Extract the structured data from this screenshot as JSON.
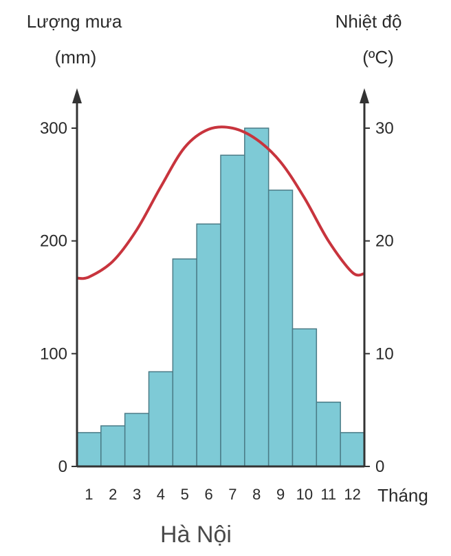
{
  "chart_data": {
    "type": "bar",
    "title": "Hà Nội",
    "left_axis": {
      "label": "Lượng mưa",
      "unit": "(mm)",
      "ticks": [
        0,
        100,
        200,
        300
      ],
      "range": [
        0,
        300
      ]
    },
    "right_axis": {
      "label": "Nhiệt độ",
      "unit": "(ºC)",
      "ticks": [
        0,
        10,
        20,
        30
      ],
      "range": [
        0,
        30
      ]
    },
    "xlabel": "Tháng",
    "categories": [
      "1",
      "2",
      "3",
      "4",
      "5",
      "6",
      "7",
      "8",
      "9",
      "10",
      "11",
      "12"
    ],
    "series": [
      {
        "type": "bar",
        "axis": "left",
        "values": [
          30,
          36,
          47,
          84,
          184,
          215,
          276,
          300,
          245,
          122,
          57,
          30
        ]
      },
      {
        "type": "line",
        "axis": "right",
        "values": [
          16.8,
          18.2,
          21.0,
          24.8,
          28.3,
          29.9,
          30.0,
          29.0,
          27.0,
          23.8,
          20.0,
          17.2
        ]
      }
    ],
    "colors": {
      "bar_fill": "#7ecad6",
      "line": "#c8343d",
      "axis": "#333333"
    },
    "legend": "none",
    "grid": false
  }
}
